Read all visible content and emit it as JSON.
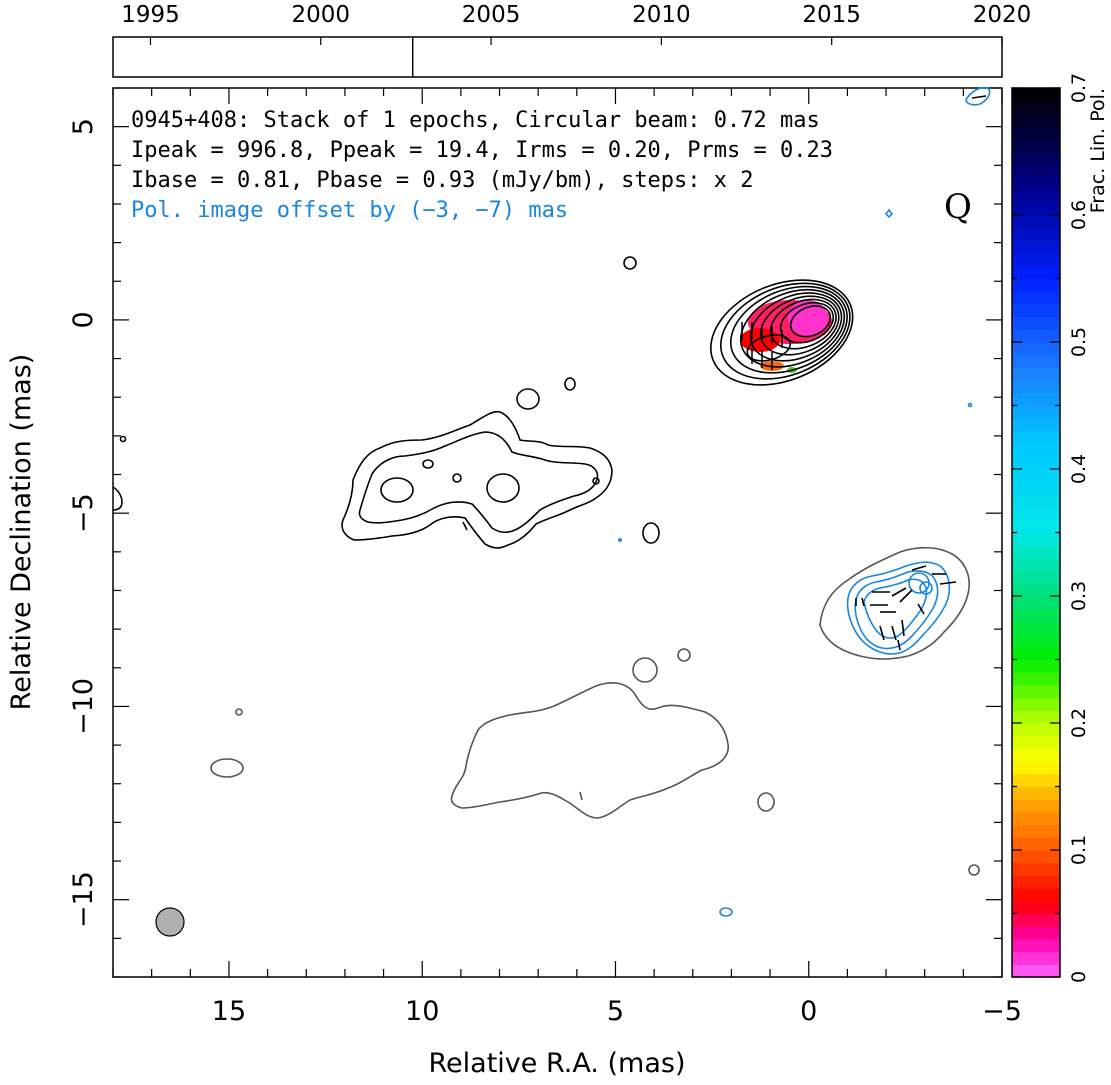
{
  "chart_data": {
    "type": "contour",
    "source_name": "0945+408",
    "info_lines": [
      "0945+408: Stack of 1 epochs, Circular beam: 0.72 mas",
      "Ipeak = 996.8, Ppeak = 19.4, Irms = 0.20, Prms = 0.23",
      "Ibase = 0.81, Pbase = 0.93 (mJy/bm), steps: x 2"
    ],
    "offset_note": "Pol. image offset by (−3, −7) mas",
    "stokes_label": "Q",
    "xlabel": "Relative R.A. (mas)",
    "ylabel": "Relative Declination (mas)",
    "xlim": [
      18,
      -5
    ],
    "ylim": [
      -17,
      6
    ],
    "xticks": [
      15,
      10,
      5,
      0,
      -5
    ],
    "xtick_labels": [
      "15",
      "10",
      "5",
      "0",
      "−5"
    ],
    "yticks": [
      5,
      0,
      -5,
      -10,
      -15
    ],
    "ytick_labels": [
      "5",
      "0",
      "−5",
      "−10",
      "−15"
    ],
    "epoch_axis": {
      "years": [
        1995,
        2000,
        2005,
        2010,
        2015,
        2020
      ],
      "year_labels": [
        "1995",
        "2000",
        "2005",
        "2010",
        "2015",
        "2020"
      ],
      "xlim": [
        1993.9,
        2020.0
      ],
      "epochs": [
        2002.7
      ]
    },
    "colorbar": {
      "label": "Frac. Lin. Pol.",
      "range": [
        0,
        0.7
      ],
      "ticks": [
        0,
        0.1,
        0.2,
        0.3,
        0.4,
        0.5,
        0.6,
        0.7
      ],
      "tick_labels": [
        "0",
        "0.1",
        "0.2",
        "0.3",
        "0.4",
        "0.5",
        "0.6",
        "0.7"
      ]
    },
    "core_position_mas": [
      0,
      0
    ],
    "core_contour_levels": 9,
    "beam_diameter_mas": 0.72,
    "colors": {
      "stokes_i_contours": "#000000",
      "offset_i_contours": "#555555",
      "pol_contours": "#1a86e0",
      "offset_text": "#1a86e0",
      "beam_fill": "#b0b0b0"
    }
  }
}
